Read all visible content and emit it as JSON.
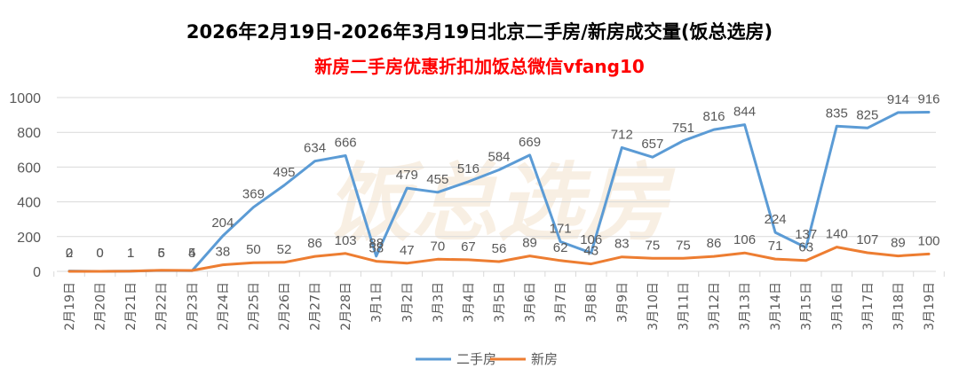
{
  "chart_data": {
    "type": "line",
    "title": "2026年2月19日-2026年3月19日北京二手房/新房成交量(饭总选房)",
    "subtitle": "新房二手房优惠折扣加饭总微信vfang10",
    "watermark": "饭总选房",
    "categories": [
      "2月19日",
      "2月20日",
      "2月21日",
      "2月22日",
      "2月23日",
      "2月24日",
      "2月25日",
      "2月26日",
      "2月27日",
      "2月28日",
      "3月1日",
      "3月2日",
      "3月3日",
      "3月4日",
      "3月5日",
      "3月6日",
      "3月7日",
      "3月8日",
      "3月9日",
      "3月10日",
      "3月11日",
      "3月12日",
      "3月13日",
      "3月14日",
      "3月15日",
      "3月16日",
      "3月17日",
      "3月18日",
      "3月19日"
    ],
    "series": [
      {
        "name": "二手房",
        "color": "#5b9bd5",
        "values": [
          2,
          0,
          1,
          5,
          4,
          204,
          369,
          495,
          634,
          666,
          88,
          479,
          455,
          516,
          584,
          669,
          171,
          106,
          712,
          657,
          751,
          816,
          844,
          224,
          137,
          835,
          825,
          914,
          916
        ]
      },
      {
        "name": "新房",
        "color": "#ed7d31",
        "values": [
          0,
          0,
          1,
          6,
          5,
          38,
          50,
          52,
          86,
          103,
          58,
          47,
          70,
          67,
          56,
          89,
          62,
          43,
          83,
          75,
          75,
          86,
          106,
          71,
          63,
          140,
          107,
          89,
          100
        ]
      }
    ],
    "y_ticks": [
      0,
      200,
      400,
      600,
      800,
      1000
    ],
    "ylim": [
      0,
      1000
    ],
    "legend_position": "bottom"
  }
}
